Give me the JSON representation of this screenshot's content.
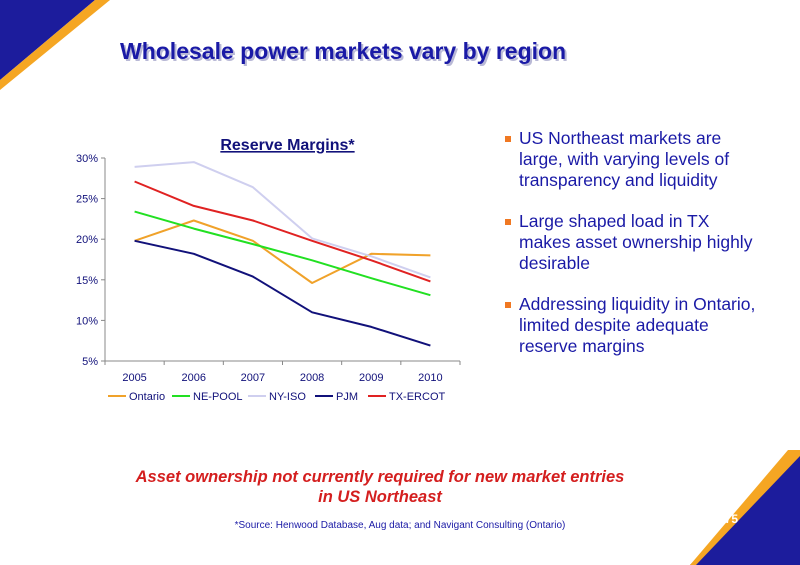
{
  "slide": {
    "title": "Wholesale power markets vary by region",
    "callout_line1": "Asset ownership not currently required for new market entries",
    "callout_line2": "in US Northeast",
    "source": "*Source: Henwood Database, Aug data; and Navigant Consulting (Ontario)",
    "page_number": "75"
  },
  "bullets": [
    "US Northeast markets are large, with varying levels of transparency and liquidity",
    "Large shaped load in TX makes asset ownership highly desirable",
    "Addressing liquidity in Ontario, limited despite adequate reserve margins"
  ],
  "colors": {
    "title": "#1a1aa6",
    "accent": "#f07822",
    "callout": "#d41e1e",
    "corner_blue": "#1c1c9c"
  },
  "chart_data": {
    "type": "line",
    "title": "Reserve Margins*",
    "x": [
      "2005",
      "2006",
      "2007",
      "2008",
      "2009",
      "2010"
    ],
    "ylim": [
      5,
      30
    ],
    "yticks": [
      5,
      10,
      15,
      20,
      25,
      30
    ],
    "ytick_labels": [
      "5%",
      "10%",
      "15%",
      "20%",
      "25%",
      "30%"
    ],
    "legend_position": "bottom",
    "grid": false,
    "series": [
      {
        "name": "Ontario",
        "color": "#f0a22a",
        "values": [
          19.8,
          22.3,
          19.8,
          14.6,
          18.2,
          18.0
        ]
      },
      {
        "name": "NE-POOL",
        "color": "#22e022",
        "values": [
          23.4,
          21.3,
          19.4,
          17.4,
          15.2,
          13.1
        ]
      },
      {
        "name": "NY-ISO",
        "color": "#cfcfef",
        "values": [
          28.9,
          29.5,
          26.4,
          20.1,
          17.9,
          15.3
        ]
      },
      {
        "name": "PJM",
        "color": "#11117a",
        "values": [
          19.8,
          18.2,
          15.4,
          11.0,
          9.2,
          6.9
        ]
      },
      {
        "name": "TX-ERCOT",
        "color": "#e02222",
        "values": [
          27.1,
          24.1,
          22.3,
          19.8,
          17.4,
          14.8
        ]
      }
    ]
  }
}
